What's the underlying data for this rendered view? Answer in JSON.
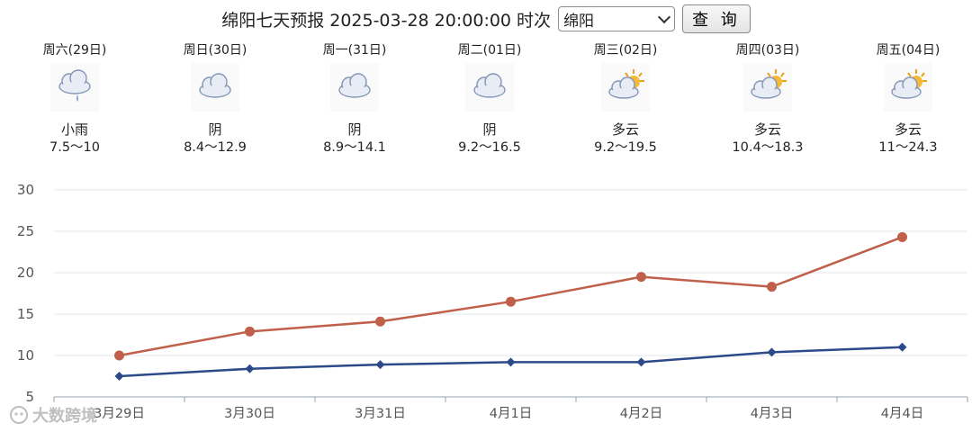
{
  "header": {
    "title": "绵阳七天预报 2025-03-28 20:00:00 时次",
    "selected_city": "绵阳",
    "query_label": "查 询"
  },
  "days": [
    {
      "label": "周六(29日)",
      "icon": "light-rain-icon",
      "condition": "小雨",
      "range": "7.5～10"
    },
    {
      "label": "周日(30日)",
      "icon": "cloudy-icon",
      "condition": "阴",
      "range": "8.4～12.9"
    },
    {
      "label": "周一(31日)",
      "icon": "cloudy-icon",
      "condition": "阴",
      "range": "8.9～14.1"
    },
    {
      "label": "周二(01日)",
      "icon": "cloudy-icon",
      "condition": "阴",
      "range": "9.2～16.5"
    },
    {
      "label": "周三(02日)",
      "icon": "partly-cloudy-icon",
      "condition": "多云",
      "range": "9.2～19.5"
    },
    {
      "label": "周四(03日)",
      "icon": "partly-cloudy-icon",
      "condition": "多云",
      "range": "10.4～18.3"
    },
    {
      "label": "周五(04日)",
      "icon": "partly-cloudy-icon",
      "condition": "多云",
      "range": "11～24.3"
    }
  ],
  "chart_data": {
    "type": "line",
    "categories": [
      "3月29日",
      "3月30日",
      "3月31日",
      "4月1日",
      "4月2日",
      "4月3日",
      "4月4日"
    ],
    "series": [
      {
        "values": [
          10,
          12.9,
          14.1,
          16.5,
          19.5,
          18.3,
          24.3
        ],
        "color": "#c0604a",
        "marker": "circle"
      },
      {
        "values": [
          7.5,
          8.4,
          8.9,
          9.2,
          9.2,
          10.4,
          11
        ],
        "color": "#2c4a8a",
        "marker": "diamond"
      }
    ],
    "yticks": [
      5,
      10,
      15,
      20,
      25,
      30
    ],
    "ylim": [
      5,
      30
    ],
    "grid": true
  },
  "watermark": "大数跨境"
}
